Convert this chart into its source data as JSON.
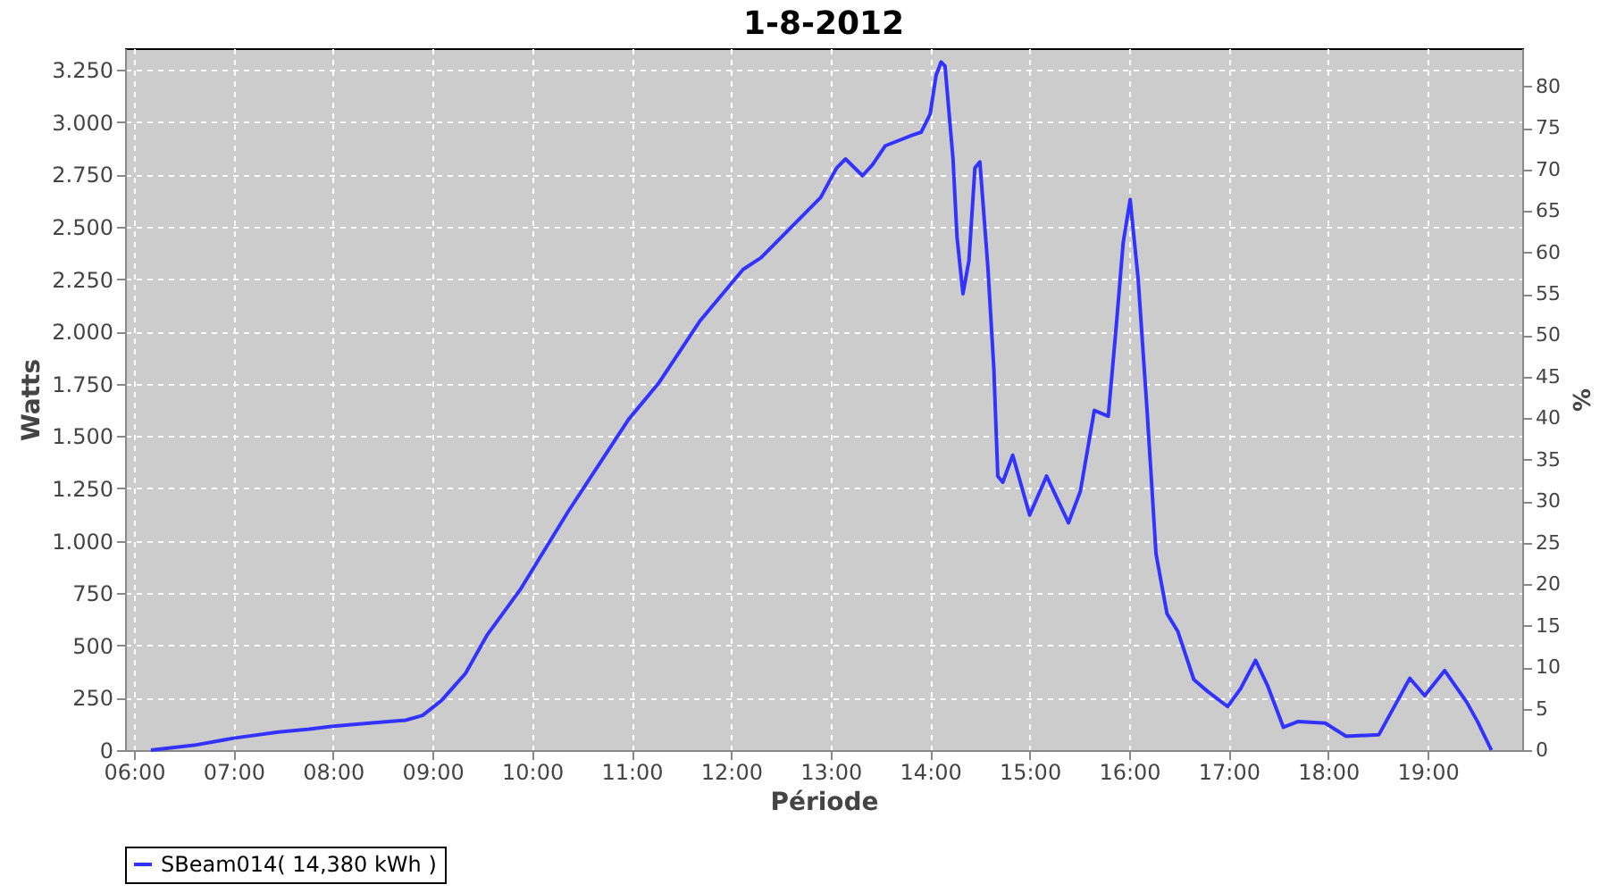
{
  "chart_data": {
    "type": "line",
    "title": "1-8-2012",
    "xlabel": "Période",
    "ylabel": "Watts",
    "y2label": "%",
    "x": [
      6.17,
      6.6,
      7.0,
      7.45,
      7.76,
      8.0,
      8.42,
      8.73,
      8.9,
      9.09,
      9.33,
      9.55,
      9.88,
      10.36,
      10.97,
      11.27,
      11.69,
      12.12,
      12.3,
      12.9,
      13.06,
      13.15,
      13.32,
      13.42,
      13.55,
      13.82,
      13.91,
      14.0,
      14.06,
      14.11,
      14.15,
      14.23,
      14.27,
      14.33,
      14.39,
      14.45,
      14.5,
      14.58,
      14.64,
      14.68,
      14.73,
      14.83,
      15.0,
      15.17,
      15.39,
      15.51,
      15.65,
      15.79,
      15.87,
      15.94,
      16.01,
      16.09,
      16.18,
      16.27,
      16.38,
      16.49,
      16.65,
      16.79,
      16.99,
      17.12,
      17.27,
      17.39,
      17.55,
      17.7,
      17.97,
      18.18,
      18.51,
      18.82,
      18.97,
      19.17,
      19.39,
      19.5,
      19.64
    ],
    "series": [
      {
        "name": "SBeam014( 14,380 kWh )",
        "color": "#3333ff",
        "values": [
          0,
          23,
          57,
          86,
          100,
          114,
          131,
          143,
          166,
          237,
          366,
          551,
          766,
          1138,
          1580,
          1752,
          2052,
          2296,
          2352,
          2640,
          2781,
          2824,
          2744,
          2796,
          2887,
          2938,
          2952,
          3038,
          3224,
          3287,
          3267,
          2824,
          2452,
          2180,
          2338,
          2781,
          2810,
          2309,
          1824,
          1309,
          1280,
          1409,
          1123,
          1309,
          1086,
          1237,
          1623,
          1595,
          2024,
          2424,
          2630,
          2253,
          1623,
          937,
          652,
          566,
          337,
          280,
          208,
          294,
          429,
          309,
          109,
          137,
          129,
          66,
          74,
          343,
          260,
          380,
          231,
          137,
          0
        ]
      }
    ],
    "xlim": [
      5.91,
      19.95
    ],
    "xticks": [
      {
        "value": 6,
        "label": "06:00"
      },
      {
        "value": 7,
        "label": "07:00"
      },
      {
        "value": 8,
        "label": "08:00"
      },
      {
        "value": 9,
        "label": "09:00"
      },
      {
        "value": 10,
        "label": "10:00"
      },
      {
        "value": 11,
        "label": "11:00"
      },
      {
        "value": 12,
        "label": "12:00"
      },
      {
        "value": 13,
        "label": "13:00"
      },
      {
        "value": 14,
        "label": "14:00"
      },
      {
        "value": 15,
        "label": "15:00"
      },
      {
        "value": 16,
        "label": "16:00"
      },
      {
        "value": 17,
        "label": "17:00"
      },
      {
        "value": 18,
        "label": "18:00"
      },
      {
        "value": 19,
        "label": "19:00"
      }
    ],
    "ylim": [
      0,
      3353
    ],
    "yticks": [
      0,
      250,
      500,
      750,
      {
        "value": 1000,
        "label": "1.000"
      },
      {
        "value": 1250,
        "label": "1.250"
      },
      {
        "value": 1500,
        "label": "1.500"
      },
      {
        "value": 1750,
        "label": "1.750"
      },
      {
        "value": 2000,
        "label": "2.000"
      },
      {
        "value": 2250,
        "label": "2.250"
      },
      {
        "value": 2500,
        "label": "2.500"
      },
      {
        "value": 2750,
        "label": "2.750"
      },
      {
        "value": 3000,
        "label": "3.000"
      },
      {
        "value": 3250,
        "label": "3.250"
      }
    ],
    "y2lim": [
      0,
      84.6
    ],
    "y2ticks": [
      0,
      5,
      10,
      15,
      20,
      25,
      30,
      35,
      40,
      45,
      50,
      55,
      60,
      65,
      70,
      75,
      80
    ],
    "grid": true,
    "legend": "bottom",
    "marker": "none",
    "line_style": "solid"
  }
}
